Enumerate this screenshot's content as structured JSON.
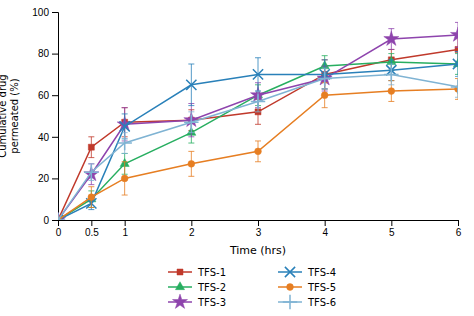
{
  "chart_data": {
    "type": "line",
    "x": [
      0,
      0.5,
      1,
      2,
      3,
      4,
      5,
      6
    ],
    "series": [
      {
        "name": "TFS-1",
        "color": "#c0392b",
        "marker": "square",
        "line_style": "solid",
        "values": [
          0,
          35,
          47,
          48,
          52,
          70,
          77,
          82
        ],
        "errors": [
          0,
          5,
          7,
          5,
          6,
          7,
          5,
          6
        ]
      },
      {
        "name": "TFS-2",
        "color": "#27ae60",
        "marker": "triangle",
        "line_style": "solid",
        "values": [
          0,
          10,
          27,
          42,
          60,
          74,
          76,
          75
        ],
        "errors": [
          0,
          4,
          5,
          5,
          5,
          5,
          4,
          5
        ]
      },
      {
        "name": "TFS-3",
        "color": "#8e44ad",
        "marker": "star",
        "line_style": "solid",
        "values": [
          0,
          22,
          46,
          48,
          60,
          68,
          87,
          89
        ],
        "errors": [
          0,
          5,
          8,
          8,
          6,
          6,
          5,
          6
        ]
      },
      {
        "name": "TFS-4",
        "color": "#2980b9",
        "marker": "x",
        "line_style": "solid",
        "values": [
          0,
          8,
          45,
          65,
          70,
          70,
          72,
          75
        ],
        "errors": [
          0,
          3,
          6,
          10,
          8,
          7,
          5,
          6
        ]
      },
      {
        "name": "TFS-5",
        "color": "#e67e22",
        "marker": "circle",
        "line_style": "solid",
        "values": [
          0,
          11,
          20,
          27,
          33,
          60,
          62,
          63
        ],
        "errors": [
          0,
          5,
          8,
          6,
          5,
          6,
          5,
          5
        ]
      },
      {
        "name": "TFS-6",
        "color": "#7fb3d3",
        "marker": "plus",
        "line_style": "solid",
        "values": [
          0,
          23,
          37,
          47,
          57,
          68,
          70,
          64
        ],
        "errors": [
          0,
          4,
          5,
          5,
          5,
          5,
          5,
          5
        ]
      }
    ],
    "xlabel": "Time (hrs)",
    "ylabel": "Cumulative drug\npermeated (%)",
    "xlim": [
      0,
      6
    ],
    "ylim": [
      0,
      100
    ],
    "xticks": [
      0,
      0.5,
      1,
      2,
      3,
      4,
      5,
      6
    ],
    "yticks": [
      0,
      20,
      40,
      60,
      80,
      100
    ],
    "legend": "bottom"
  }
}
